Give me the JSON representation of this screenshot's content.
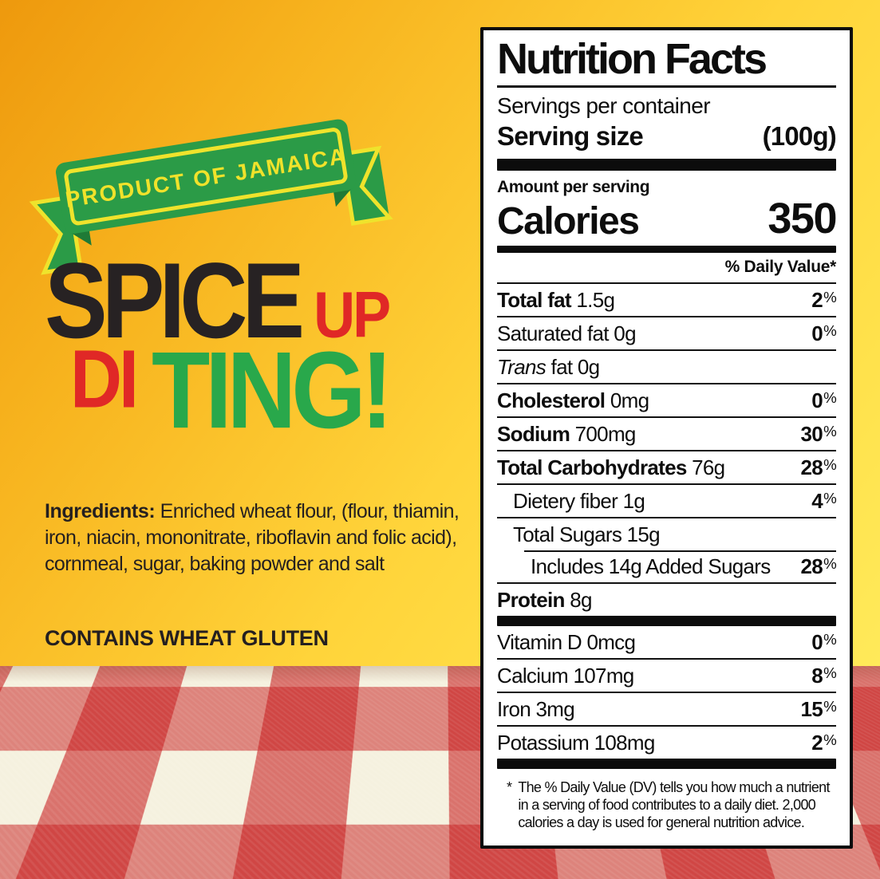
{
  "colors": {
    "bg_orange": "#EE990D",
    "bg_yellow": "#FFEF63",
    "ribbon_green": "#2B9B47",
    "ribbon_yellow": "#EFE32C",
    "slogan_black": "#272223",
    "slogan_red": "#E02826",
    "slogan_green": "#29A84B",
    "cloth_red": "#C71E20",
    "cloth_cream": "#F5F1DF",
    "panel_ink": "#0D0D0D"
  },
  "left": {
    "ribbon_text": "PRODUCT OF JAMAICA",
    "slogan": {
      "spice": "SPICE",
      "up": "UP",
      "di": "DI",
      "ting": "TING!"
    },
    "ingredients_label": "Ingredients:",
    "ingredients_text": " Enriched wheat flour, (flour, thiamin, iron, niacin, mononitrate, riboflavin and folic acid), cornmeal, sugar, baking powder and salt",
    "allergen": "CONTAINS WHEAT GLUTEN"
  },
  "nutrition": {
    "title": "Nutrition Facts",
    "servings_line": "Servings per container",
    "serving_size_label": "Serving size",
    "serving_size_value": "(100g)",
    "amount_per_serving": "Amount per serving",
    "calories_label": "Calories",
    "calories_value": "350",
    "daily_value_header": "% Daily Value*",
    "rows": [
      {
        "name": "Total fat",
        "amount": "1.5g",
        "dv": "2",
        "style": "bold",
        "level": 0,
        "sep": "full"
      },
      {
        "name": "Saturated fat",
        "amount": "0g",
        "dv": "0",
        "style": "normal",
        "level": 0,
        "sep": "full"
      },
      {
        "name": "Trans",
        "amount": "fat 0g",
        "dv": "",
        "style": "italic",
        "level": 0,
        "sep": "full"
      },
      {
        "name": "Cholesterol",
        "amount": "0mg",
        "dv": "0",
        "style": "bold",
        "level": 0,
        "sep": "full"
      },
      {
        "name": "Sodium",
        "amount": "700mg",
        "dv": "30",
        "style": "bold",
        "level": 0,
        "sep": "full"
      },
      {
        "name": "Total Carbohydrates",
        "amount": "76g",
        "dv": "28",
        "style": "bold",
        "level": 0,
        "sep": "full"
      },
      {
        "name": "Dietery fiber",
        "amount": "1g",
        "dv": "4",
        "style": "normal",
        "level": 1,
        "sep": "full"
      },
      {
        "name": "Total Sugars",
        "amount": "15g",
        "dv": "",
        "style": "normal",
        "level": 1,
        "sep": "full"
      },
      {
        "name": "Includes 14g Added Sugars",
        "amount": "",
        "dv": "28",
        "style": "normal",
        "level": 2,
        "sep": "partial"
      },
      {
        "name": "Protein",
        "amount": "8g",
        "dv": "",
        "style": "bold",
        "level": 0,
        "sep": "full"
      }
    ],
    "vitamin_rows": [
      {
        "name": "Vitamin D",
        "amount": "0mcg",
        "dv": "0",
        "style": "normal",
        "level": 0,
        "sep": "none"
      },
      {
        "name": "Calcium",
        "amount": "107mg",
        "dv": "8",
        "style": "normal",
        "level": 0,
        "sep": "full"
      },
      {
        "name": "Iron",
        "amount": "3mg",
        "dv": "15",
        "style": "normal",
        "level": 0,
        "sep": "full"
      },
      {
        "name": "Potassium",
        "amount": "108mg",
        "dv": "2",
        "style": "normal",
        "level": 0,
        "sep": "full"
      }
    ],
    "footnote_star": "*",
    "footnote": "The % Daily Value (DV) tells you how much a nutrient in a serving of food contributes to a daily diet. 2,000 calories a day is used for general nutrition advice."
  }
}
